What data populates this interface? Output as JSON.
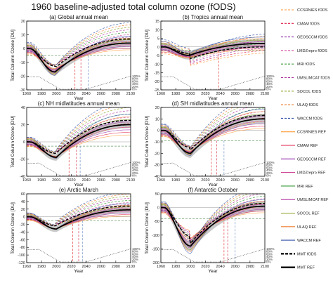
{
  "title": "1960 baseline-adjusted total column ozone (fODS)",
  "chart_data": {
    "type": "line",
    "title": "1960 baseline-adjusted total column ozone (fODS)",
    "legend_position": "right",
    "x_ticks": [
      1960,
      1980,
      2000,
      2020,
      2040,
      2060,
      2080,
      2100
    ],
    "pct_labels": [
      "100%",
      "80%",
      "60%",
      "40%",
      "20%",
      "0%"
    ],
    "panels": [
      {
        "key": "a",
        "title": "(a) Global annual mean",
        "xlabel": "Year",
        "ylabel": "Total Column Ozone [DU]",
        "xlim": [
          1960,
          2100
        ],
        "ylim": [
          -30,
          20
        ],
        "yticks": [
          20,
          10,
          0,
          -10,
          -20,
          -30
        ],
        "ytick_labels": [
          "20",
          "10",
          "0",
          "-10",
          "-20",
          "-30"
        ],
        "trough_year": 1998,
        "trough": -17,
        "end": 4,
        "drop": 3,
        "spread": 3.5,
        "hline": -5,
        "return_years": [
          2025,
          2033,
          2043
        ]
      },
      {
        "key": "b",
        "title": "(b) Tropics annual mean",
        "xlabel": "Year",
        "ylabel": "Total Column Ozone [DU]",
        "xlim": [
          1960,
          2100
        ],
        "ylim": [
          -25,
          15
        ],
        "yticks": [
          15,
          10,
          5,
          0,
          -5,
          -10,
          -15,
          -20,
          -25
        ],
        "ytick_labels": [
          "15",
          "10",
          "5",
          "0",
          "-5",
          "-10",
          "-15",
          "-20",
          "-25"
        ],
        "trough_year": 1998,
        "trough": -5,
        "end": 2,
        "drop": -2,
        "spread": 3,
        "hline": -2,
        "return_years": [
          2038
        ]
      },
      {
        "key": "c",
        "title": "(c) NH midlatitudes annual mean",
        "xlabel": "Year",
        "ylabel": "Total Column Ozone [DU]",
        "xlim": [
          1960,
          2100
        ],
        "ylim": [
          -40,
          40
        ],
        "yticks": [
          40,
          20,
          0,
          -20,
          -40
        ],
        "ytick_labels": [
          "40",
          "20",
          "0",
          "-20",
          "-40"
        ],
        "trough_year": 2000,
        "trough": -18,
        "end": 20,
        "drop": 5,
        "spread": 5,
        "hline": -5,
        "return_years": [
          2017,
          2027,
          2032
        ]
      },
      {
        "key": "d",
        "title": "(d) SH midlatitudes annual mean",
        "xlabel": "Year",
        "ylabel": "Total Column Ozone [DU]",
        "xlim": [
          1960,
          2100
        ],
        "ylim": [
          -40,
          20
        ],
        "yticks": [
          20,
          10,
          0,
          -10,
          -20,
          -30,
          -40
        ],
        "ytick_labels": [
          "20",
          "10",
          "0",
          "-10",
          "-20",
          "-30",
          "-40"
        ],
        "trough_year": 2000,
        "trough": -20,
        "end": 10,
        "drop": 3,
        "spread": 5,
        "hline": -9,
        "return_years": [
          2028,
          2035,
          2045
        ]
      },
      {
        "key": "e",
        "title": "(e) Arctic March",
        "xlabel": "Year",
        "ylabel": "Total Column Ozone [DU]",
        "xlim": [
          1960,
          2100
        ],
        "ylim": [
          -120,
          60
        ],
        "yticks": [
          60,
          40,
          20,
          0,
          -20,
          -40,
          -60,
          -80,
          -100,
          -120
        ],
        "ytick_labels": [
          "60",
          "40",
          "20",
          "0",
          "-20",
          "-40",
          "-60",
          "-80",
          "-100",
          "-120"
        ],
        "trough_year": 2000,
        "trough": -32,
        "end": 18,
        "drop": 10,
        "spread": 10,
        "hline": -10,
        "return_years": [
          2022,
          2030,
          2035
        ]
      },
      {
        "key": "f",
        "title": "(f) Antarctic October",
        "xlabel": "Year",
        "ylabel": "Total Column Ozone [DU]",
        "xlim": [
          1960,
          2100
        ],
        "ylim": [
          -200,
          50
        ],
        "yticks": [
          50,
          0,
          -50,
          -100,
          -150,
          -200
        ],
        "ytick_labels": [
          "50",
          "0",
          "-50",
          "-100",
          "-150",
          "-200"
        ],
        "trough_year": 2000,
        "trough": -140,
        "end": 5,
        "drop": 10,
        "spread": 22,
        "hline": -40,
        "return_years": [
          2045,
          2050,
          2060
        ]
      }
    ],
    "legend": [
      {
        "name": "CCSRNIES fODS",
        "color": "#ff9933",
        "dash": "3,2",
        "width": 1.1
      },
      {
        "name": "CMAM fODS",
        "color": "#e0224b",
        "dash": "3,2",
        "width": 1.1
      },
      {
        "name": "GEOSCCM fODS",
        "color": "#8e2ba8",
        "dash": "3,2",
        "width": 1.1
      },
      {
        "name": "LMDZrepro fODS",
        "color": "#d1479a",
        "dash": "3,2",
        "width": 1.1
      },
      {
        "name": "MRI fODS",
        "color": "#3a9a3a",
        "dash": "3,2",
        "width": 1.1
      },
      {
        "name": "UMSLIMCAT fODS",
        "color": "#b035a0",
        "dash": "3,2",
        "width": 1.1
      },
      {
        "name": "SOCOL fODS",
        "color": "#8aa327",
        "dash": "3,2",
        "width": 1.1
      },
      {
        "name": "ULAQ fODS",
        "color": "#ee7d2f",
        "dash": "3,2",
        "width": 1.1
      },
      {
        "name": "WACCM fODS",
        "color": "#2f4fa8",
        "dash": "3,2",
        "width": 1.1
      },
      {
        "name": "CCSRNIES REF",
        "color": "#ff9933",
        "dash": "",
        "width": 1.1
      },
      {
        "name": "CMAM REF",
        "color": "#e0224b",
        "dash": "",
        "width": 1.1
      },
      {
        "name": "GEOSCCM REF",
        "color": "#8e2ba8",
        "dash": "",
        "width": 1.1
      },
      {
        "name": "LMDZrepro REF",
        "color": "#d1479a",
        "dash": "",
        "width": 1.1
      },
      {
        "name": "MRI REF",
        "color": "#3a9a3a",
        "dash": "",
        "width": 1.1
      },
      {
        "name": "UMSLIMCAT REF",
        "color": "#b035a0",
        "dash": "",
        "width": 1.1
      },
      {
        "name": "SOCOL REF",
        "color": "#8aa327",
        "dash": "",
        "width": 1.1
      },
      {
        "name": "ULAQ REF",
        "color": "#ee7d2f",
        "dash": "",
        "width": 1.1
      },
      {
        "name": "WACCM REF",
        "color": "#2f4fa8",
        "dash": "",
        "width": 1.1
      },
      {
        "name": "MMT fODS",
        "color": "#000000",
        "dash": "4,2",
        "width": 2.2
      },
      {
        "name": "MMT REF",
        "color": "#000000",
        "dash": "",
        "width": 2.4
      }
    ],
    "model_colors": [
      "#ff9933",
      "#e0224b",
      "#8e2ba8",
      "#d1479a",
      "#3a9a3a",
      "#b035a0",
      "#8aa327",
      "#ee7d2f",
      "#2f4fa8"
    ],
    "envelope_color": "#9a9a9a",
    "hline_color": "#6b9e6b",
    "return_line_colors": [
      "#e63b3b",
      "#d4364c",
      "#6a8fc6"
    ]
  }
}
